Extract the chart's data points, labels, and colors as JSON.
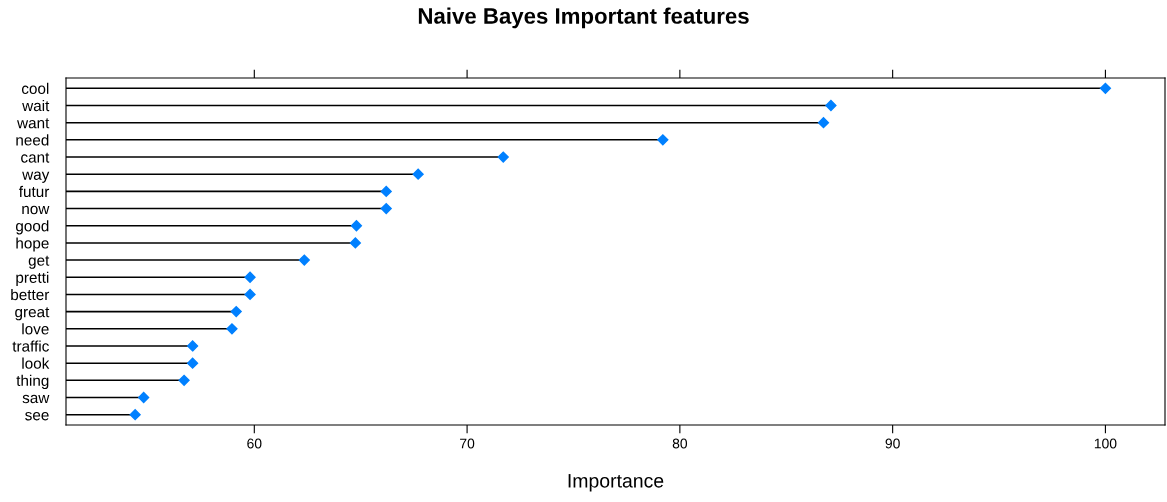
{
  "chart_data": {
    "type": "lollipop",
    "title": "Naive Bayes Important features",
    "xlabel": "Importance",
    "orientation": "horizontal",
    "categories": [
      "cool",
      "wait",
      "want",
      "need",
      "cant",
      "way",
      "futur",
      "now",
      "good",
      "hope",
      "get",
      "pretti",
      "better",
      "great",
      "love",
      "traffic",
      "look",
      "thing",
      "saw",
      "see"
    ],
    "values": [
      100,
      87.1,
      86.75,
      79.2,
      71.7,
      67.7,
      66.2,
      66.2,
      64.8,
      64.75,
      62.35,
      59.8,
      59.8,
      59.15,
      58.95,
      57.1,
      57.1,
      56.7,
      54.8,
      54.4
    ],
    "color": "#0080ff",
    "marker": "diamond",
    "xlim": [
      51.15,
      102.8
    ],
    "xticks": [
      60,
      70,
      80,
      90,
      100
    ]
  }
}
